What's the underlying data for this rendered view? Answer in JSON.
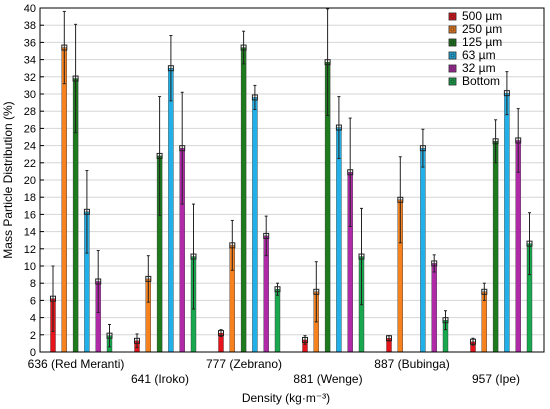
{
  "chart_data": {
    "type": "bar",
    "xlabel": "Density (kg·m⁻³)",
    "ylabel": "Mass Particle Distribution (%)",
    "ylim": [
      0,
      40
    ],
    "ytick_step": 2,
    "grid": true,
    "legend_position": "top-right",
    "categories": [
      "636 (Red Meranti)",
      "641 (Iroko)",
      "777 (Zebrano)",
      "881 (Wenge)",
      "887 (Bubinga)",
      "957 (Ipe)"
    ],
    "series": [
      {
        "name": "500 µm",
        "color": "#e8141c",
        "values": [
          6.2,
          1.3,
          2.2,
          1.4,
          1.6,
          1.2
        ],
        "errors": [
          3.8,
          0.8,
          0.4,
          0.5,
          0.3,
          0.4
        ]
      },
      {
        "name": "250 µm",
        "color": "#f5821f",
        "values": [
          35.4,
          8.5,
          12.4,
          7.0,
          17.7,
          7.0
        ],
        "errors": [
          4.2,
          2.7,
          2.9,
          3.5,
          5.0,
          1.0
        ]
      },
      {
        "name": "125 µm",
        "color": "#1d7a1d",
        "values": [
          31.8,
          22.8,
          35.4,
          33.7,
          0.0,
          24.5
        ],
        "errors": [
          6.3,
          6.9,
          1.9,
          6.2,
          0.0,
          2.5
        ]
      },
      {
        "name": "63 µm",
        "color": "#22b0e8",
        "values": [
          16.3,
          33.0,
          29.6,
          26.1,
          23.7,
          30.1
        ],
        "errors": [
          4.8,
          3.8,
          1.4,
          3.6,
          2.2,
          2.5
        ]
      },
      {
        "name": "32 µm",
        "color": "#b02aa8",
        "values": [
          8.2,
          23.7,
          13.5,
          20.9,
          10.3,
          24.6
        ],
        "errors": [
          3.6,
          6.5,
          2.3,
          6.3,
          1.0,
          3.7
        ]
      },
      {
        "name": "Bottom",
        "color": "#1aa84f",
        "values": [
          1.9,
          11.1,
          7.3,
          11.1,
          3.7,
          12.6
        ],
        "errors": [
          1.3,
          6.1,
          0.7,
          5.6,
          1.1,
          3.6
        ]
      }
    ]
  }
}
